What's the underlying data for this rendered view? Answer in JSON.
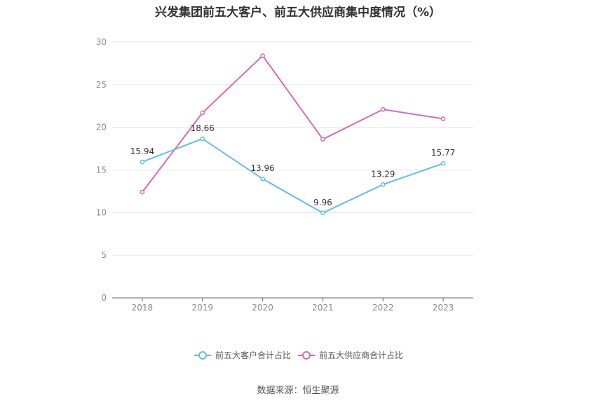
{
  "chart_data": {
    "type": "line",
    "title": "兴发集团前五大客户、前五大供应商集中度情况（%）",
    "source": "数据来源：恒生聚源",
    "categories": [
      "2018",
      "2019",
      "2020",
      "2021",
      "2022",
      "2023"
    ],
    "ylim": [
      0,
      30
    ],
    "yticks": [
      0,
      5,
      10,
      15,
      20,
      25,
      30
    ],
    "grid": true,
    "legend_position": "bottom",
    "series": [
      {
        "name": "前五大客户合计占比",
        "color": "#5bc0eb",
        "values": [
          15.94,
          18.66,
          13.96,
          9.96,
          13.29,
          15.77
        ],
        "labels": [
          "15.94",
          "18.66",
          "13.96",
          "9.96",
          "13.29",
          "15.77"
        ]
      },
      {
        "name": "前五大供应商合计占比",
        "color": "#d36cb7",
        "values": [
          12.4,
          21.7,
          28.4,
          18.6,
          22.1,
          21.0
        ]
      }
    ]
  }
}
